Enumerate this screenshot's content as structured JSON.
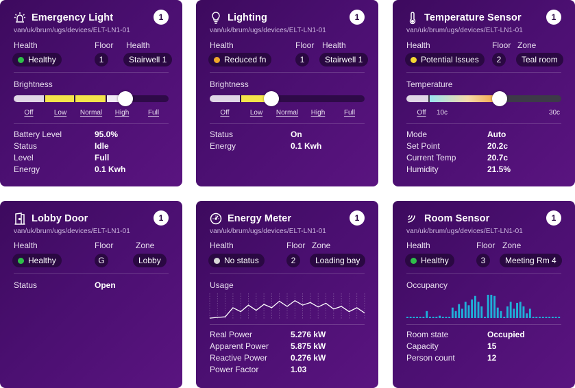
{
  "cards": {
    "emergency": {
      "title": "Emergency Light",
      "badge": "1",
      "path": "van/uk/brum/ugs/devices/ELT-LN1-01",
      "col1_label": "Health",
      "col2_label": "Floor",
      "col3_label": "Health",
      "health": "Healthy",
      "health_color": "#2fbf4a",
      "floor": "1",
      "zone": "Stairwell 1",
      "section_label": "Brightness",
      "ticks": [
        "Off",
        "Low",
        "Normal",
        "High",
        "Full"
      ],
      "brightness_level": 0.72,
      "kv": [
        {
          "k": "Battery Level",
          "v": "95.0%"
        },
        {
          "k": "Status",
          "v": "Idle"
        },
        {
          "k": "Level",
          "v": "Full"
        },
        {
          "k": "Energy",
          "v": "0.1 Kwh"
        }
      ]
    },
    "lighting": {
      "title": "Lighting",
      "badge": "1",
      "path": "van/uk/brum/ugs/devices/ELT-LN1-01",
      "col1_label": "Health",
      "col2_label": "Floor",
      "col3_label": "Health",
      "health": "Reduced fn",
      "health_color": "#f0a72a",
      "floor": "1",
      "zone": "Stairwell 1",
      "section_label": "Brightness",
      "ticks": [
        "Off",
        "Low",
        "Normal",
        "High",
        "Full"
      ],
      "brightness_level": 0.4,
      "kv": [
        {
          "k": "Status",
          "v": "On"
        },
        {
          "k": "Energy",
          "v": "0.1 Kwh"
        }
      ]
    },
    "temperature": {
      "title": "Temperature Sensor",
      "badge": "1",
      "path": "van/uk/brum/ugs/devices/ELT-LN1-01",
      "col1_label": "Health",
      "col2_label": "Floor",
      "col3_label": "Zone",
      "health": "Potential Issues",
      "health_color": "#f5d832",
      "floor": "2",
      "zone": "Teal room",
      "section_label": "Temperature",
      "ticks": [
        "Off",
        "10c",
        "30c"
      ],
      "temperature_level": 0.6,
      "kv": [
        {
          "k": "Mode",
          "v": "Auto"
        },
        {
          "k": "Set Point",
          "v": "20.2c"
        },
        {
          "k": "Current Temp",
          "v": "20.7c"
        },
        {
          "k": "Humidity",
          "v": "21.5%"
        }
      ]
    },
    "lobby": {
      "title": "Lobby Door",
      "badge": "1",
      "path": "van/uk/brum/ugs/devices/ELT-LN1-01",
      "col1_label": "Health",
      "col2_label": "Floor",
      "col3_label": "Zone",
      "health": "Healthy",
      "health_color": "#2fbf4a",
      "floor": "G",
      "zone": "Lobby",
      "kv": [
        {
          "k": "Status",
          "v": "Open"
        }
      ]
    },
    "energy": {
      "title": "Energy Meter",
      "badge": "1",
      "path": "van/uk/brum/ugs/devices/ELT-LN1-01",
      "col1_label": "Health",
      "col2_label": "Floor",
      "col3_label": "Zone",
      "health": "No status",
      "health_color": "#d8d8d8",
      "floor": "2",
      "zone": "Loading bay",
      "section_label": "Usage",
      "usage_series": [
        0.05,
        0.08,
        0.1,
        0.45,
        0.3,
        0.55,
        0.35,
        0.58,
        0.45,
        0.7,
        0.5,
        0.72,
        0.55,
        0.65,
        0.48,
        0.62,
        0.4,
        0.5,
        0.3,
        0.45,
        0.25
      ],
      "kv": [
        {
          "k": "Real Power",
          "v": "5.276 kW"
        },
        {
          "k": "Apparent Power",
          "v": "5.875 kW"
        },
        {
          "k": "Reactive Power",
          "v": "0.276 kW"
        },
        {
          "k": "Power Factor",
          "v": "1.03"
        }
      ]
    },
    "room": {
      "title": "Room Sensor",
      "badge": "1",
      "path": "van/uk/brum/ugs/devices/ELT-LN1-01",
      "col1_label": "Health",
      "col2_label": "Floor",
      "col3_label": "Zone",
      "health": "Healthy",
      "health_color": "#2fbf4a",
      "floor": "3",
      "zone": "Meeting Rm 4",
      "section_label": "Occupancy",
      "occupancy_series": [
        0,
        0,
        0,
        0,
        0,
        0,
        0.3,
        0,
        0,
        0,
        0.1,
        0,
        0,
        0,
        0.45,
        0.3,
        0.6,
        0.4,
        0.7,
        0.55,
        0.8,
        0.95,
        0.7,
        0.5,
        0,
        1,
        1,
        0.95,
        0.45,
        0.3,
        0,
        0.5,
        0.7,
        0.4,
        0.65,
        0.7,
        0.5,
        0.2,
        0.4,
        0,
        0,
        0,
        0,
        0,
        0,
        0,
        0,
        0
      ],
      "kv": [
        {
          "k": "Room state",
          "v": "Occupied"
        },
        {
          "k": "Capacity",
          "v": "15"
        },
        {
          "k": "Person count",
          "v": "12"
        }
      ]
    }
  }
}
